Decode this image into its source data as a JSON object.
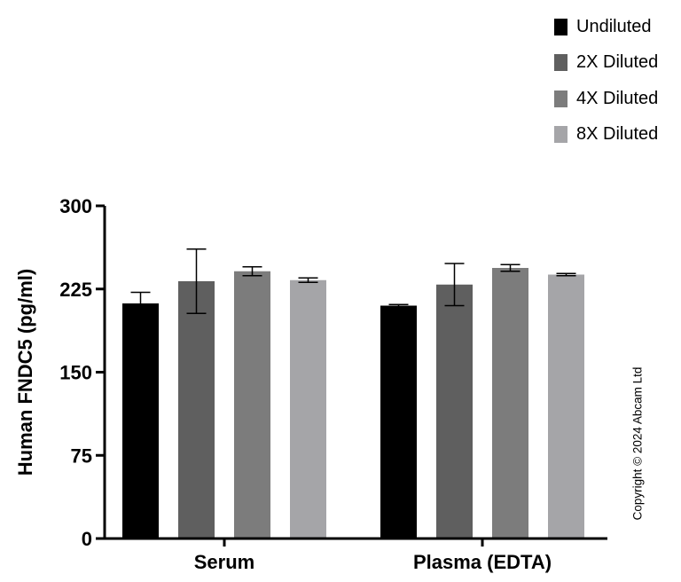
{
  "chart_data": {
    "type": "bar",
    "title": "",
    "xlabel": "",
    "ylabel": "Human FNDC5 (pg/ml)",
    "ylim": [
      0,
      300
    ],
    "yticks": [
      "0",
      "75",
      "150",
      "225",
      "300"
    ],
    "categories": [
      "Serum",
      "Plasma (EDTA)"
    ],
    "legend_position": "top-right",
    "series": [
      {
        "name": "Undiluted",
        "color": "#000000",
        "values": [
          212,
          210
        ],
        "errors": [
          10,
          1
        ]
      },
      {
        "name": "2X Diluted",
        "color": "#5f5f5f",
        "values": [
          232,
          229
        ],
        "errors": [
          29,
          19
        ]
      },
      {
        "name": "4X Diluted",
        "color": "#7c7c7c",
        "values": [
          241,
          244
        ],
        "errors": [
          4,
          3
        ]
      },
      {
        "name": "8X Diluted",
        "color": "#a5a5a8",
        "values": [
          233,
          238
        ],
        "errors": [
          2,
          1
        ]
      }
    ]
  },
  "copyright": "Copyright © 2024 Abcam Ltd"
}
